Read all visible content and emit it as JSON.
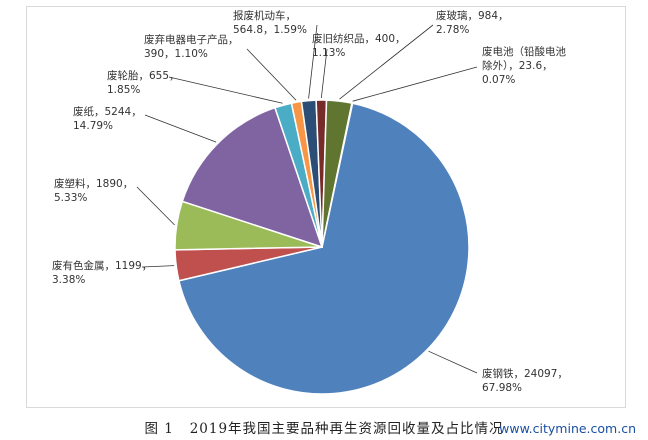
{
  "chart_data": {
    "type": "pie",
    "title": "",
    "caption_fig": "图 1",
    "caption_text": "2019年我国主要品种再生资源回收量及占比情况",
    "start_angle_deg": 12.0,
    "direction": "clockwise",
    "slices": [
      {
        "name": "废钢铁",
        "value": 24097,
        "percent": "67.98%",
        "color": "#4f81bd"
      },
      {
        "name": "废有色金属",
        "value": 1199,
        "percent": "3.38%",
        "color": "#c0504d"
      },
      {
        "name": "废塑料",
        "value": 1890,
        "percent": "5.33%",
        "color": "#9bbb59"
      },
      {
        "name": "废纸",
        "value": 5244,
        "percent": "14.79%",
        "color": "#8064a2"
      },
      {
        "name": "废轮胎",
        "value": 655,
        "percent": "1.85%",
        "color": "#4bacc6"
      },
      {
        "name": "废弃电器电子产品",
        "value": 390,
        "percent": "1.10%",
        "color": "#f79646"
      },
      {
        "name": "报废机动车",
        "value": 564.8,
        "percent": "1.59%",
        "color": "#2c4d75"
      },
      {
        "name": "废旧纺织品",
        "value": 400,
        "percent": "1.13%",
        "color": "#772c2a"
      },
      {
        "name": "废玻璃",
        "value": 984,
        "percent": "2.78%",
        "color": "#5f7530"
      },
      {
        "name": "废电池（铅酸电池除外）",
        "value": 23.6,
        "percent": "0.07%",
        "color": "#4d3b62"
      }
    ],
    "labels": [
      {
        "line1": "废钢铁，24097，",
        "line2": "67.98%"
      },
      {
        "line1": "废有色金属，1199，",
        "line2": "3.38%"
      },
      {
        "line1": "废塑料，1890，",
        "line2": "5.33%"
      },
      {
        "line1": "废纸，5244，",
        "line2": "14.79%"
      },
      {
        "line1": "废轮胎，655，",
        "line2": "1.85%"
      },
      {
        "line1": "废弃电器电子产品，",
        "line2": "390，1.10%"
      },
      {
        "line1": "报废机动车，",
        "line2": "564.8，1.59%"
      },
      {
        "line1": "废旧纺织品，400，",
        "line2": "1.13%"
      },
      {
        "line1": "废玻璃，984，",
        "line2": "2.78%"
      },
      {
        "line1": "废电池（铅酸电池",
        "line2": "除外），23.6，",
        "line3": "0.07%"
      }
    ]
  },
  "watermark": "www.citymine.com.cn"
}
